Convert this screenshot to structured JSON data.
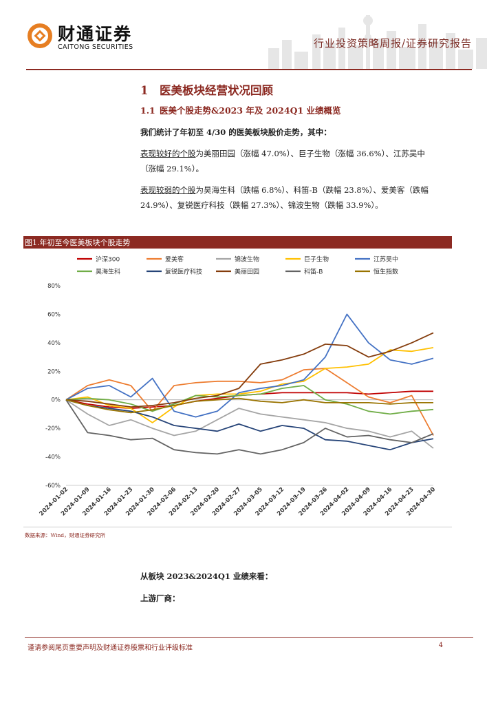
{
  "header": {
    "logo_cn": "财通证券",
    "logo_en": "CAITONG SECURITIES",
    "report_type": "行业投资策略周报/证券研究报告"
  },
  "section": {
    "h1_num": "1",
    "h1_text": "医美板块经营状况回顾",
    "h2_num": "1.1",
    "h2_text": "医美个股走势&2023 年及 2024Q1 业绩概览"
  },
  "body": {
    "intro": "我们统计了年初至 4/30 的医美板块股价走势，其中：",
    "good_label": "表现较好的个股",
    "good_text_1": "为美丽田园（涨幅 47.0%）、巨子生物（涨幅 36.6%）、江苏吴中",
    "good_text_2": "（涨幅 29.1%）。",
    "weak_label": "表现较弱的个股",
    "weak_text_1": "为昊海生科（跌幅 6.8%）、科笛-B（跌幅 23.8%）、爱美客（跌幅",
    "weak_text_2": "24.9%）、复锐医疗科技（跌幅 27.3%）、锦波生物（跌幅 33.9%）。",
    "after_1": "从板块 2023&2024Q1 业绩来看：",
    "after_2": "上游厂商："
  },
  "figure": {
    "title": "图1.年初至今医美板块个股走势",
    "source": "数据来源：Wind，财通证券研究所"
  },
  "footer": {
    "disclaimer": "谨请参阅尾页重要声明及财通证券股票和行业评级标准",
    "page": "4"
  },
  "colors": {
    "brand": "#8c2a22"
  },
  "chart_data": {
    "type": "line",
    "title": "图1.年初至今医美板块个股走势",
    "y_tick_labels": [
      "80%",
      "60%",
      "40%",
      "20%",
      "0%",
      "-20%",
      "-40%",
      "-60%"
    ],
    "ylim": [
      -60,
      80
    ],
    "x_tick_labels": [
      "2024-01-02",
      "2024-01-09",
      "2024-01-16",
      "2024-01-23",
      "2024-01-30",
      "2024-02-06",
      "2024-02-13",
      "2024-02-20",
      "2024-02-27",
      "2024-03-05",
      "2024-03-12",
      "2024-03-19",
      "2024-03-26",
      "2024-04-02",
      "2024-04-09",
      "2024-04-16",
      "2024-04-23",
      "2024-04-30"
    ],
    "x_points": [
      "2024-01-02",
      "2024-01-09",
      "2024-01-16",
      "2024-01-23",
      "2024-01-30",
      "2024-02-06",
      "2024-02-13",
      "2024-02-20",
      "2024-02-27",
      "2024-03-05",
      "2024-03-12",
      "2024-03-19",
      "2024-03-26",
      "2024-04-02",
      "2024-04-09",
      "2024-04-16",
      "2024-04-23",
      "2024-04-30"
    ],
    "grid": false,
    "legend_position": "top",
    "series": [
      {
        "name": "沪深300",
        "color": "#c00000",
        "values": [
          0,
          -3,
          -5,
          -6,
          -5,
          -4,
          -1,
          1,
          3,
          4,
          5,
          5,
          5,
          5,
          4,
          5,
          6,
          6
        ]
      },
      {
        "name": "爱美客",
        "color": "#ed7d31",
        "values": [
          0,
          10,
          14,
          10,
          -8,
          10,
          12,
          13,
          13,
          12,
          14,
          21,
          22,
          12,
          2,
          -2,
          3,
          -25
        ]
      },
      {
        "name": "锦波生物",
        "color": "#a5a5a5",
        "values": [
          0,
          -10,
          -18,
          -14,
          -20,
          -25,
          -22,
          -14,
          -6,
          -10,
          -12,
          -14,
          -16,
          -20,
          -22,
          -26,
          -22,
          -34
        ]
      },
      {
        "name": "巨子生物",
        "color": "#ffc000",
        "values": [
          0,
          2,
          -4,
          -6,
          -16,
          -5,
          3,
          4,
          4,
          6,
          11,
          13,
          22,
          23,
          25,
          35,
          34,
          36.6
        ]
      },
      {
        "name": "江苏吴中",
        "color": "#4472c4",
        "values": [
          0,
          8,
          10,
          2,
          15,
          -8,
          -12,
          -8,
          5,
          8,
          10,
          14,
          30,
          60,
          40,
          28,
          25,
          29.1
        ]
      },
      {
        "name": "昊海生科",
        "color": "#70ad47",
        "values": [
          0,
          1,
          0,
          -3,
          -8,
          -3,
          3,
          2,
          3,
          4,
          8,
          10,
          0,
          -3,
          -8,
          -10,
          -8,
          -6.8
        ]
      },
      {
        "name": "复锐医疗科技",
        "color": "#264478",
        "values": [
          0,
          -4,
          -6,
          -8,
          -12,
          -18,
          -20,
          -22,
          -17,
          -22,
          -18,
          -20,
          -28,
          -29,
          -32,
          -35,
          -30,
          -27.3
        ]
      },
      {
        "name": "美丽田园",
        "color": "#843c0c",
        "values": [
          0,
          -1,
          -3,
          -5,
          -4,
          -2,
          1,
          3,
          8,
          25,
          28,
          32,
          39,
          38,
          30,
          34,
          40,
          47
        ]
      },
      {
        "name": "科笛-B",
        "color": "#636363",
        "values": [
          0,
          -23,
          -25,
          -28,
          -27,
          -35,
          -37,
          -38,
          -35,
          -38,
          -35,
          -30,
          -20,
          -26,
          -25,
          -28,
          -30,
          -23.8
        ]
      },
      {
        "name": "恒生指数",
        "color": "#997300",
        "values": [
          0,
          -4,
          -7,
          -9,
          -7,
          -4,
          -1,
          0,
          1,
          -1,
          -2,
          0,
          -2,
          -2,
          -2,
          -3,
          -2,
          -2
        ]
      }
    ]
  }
}
